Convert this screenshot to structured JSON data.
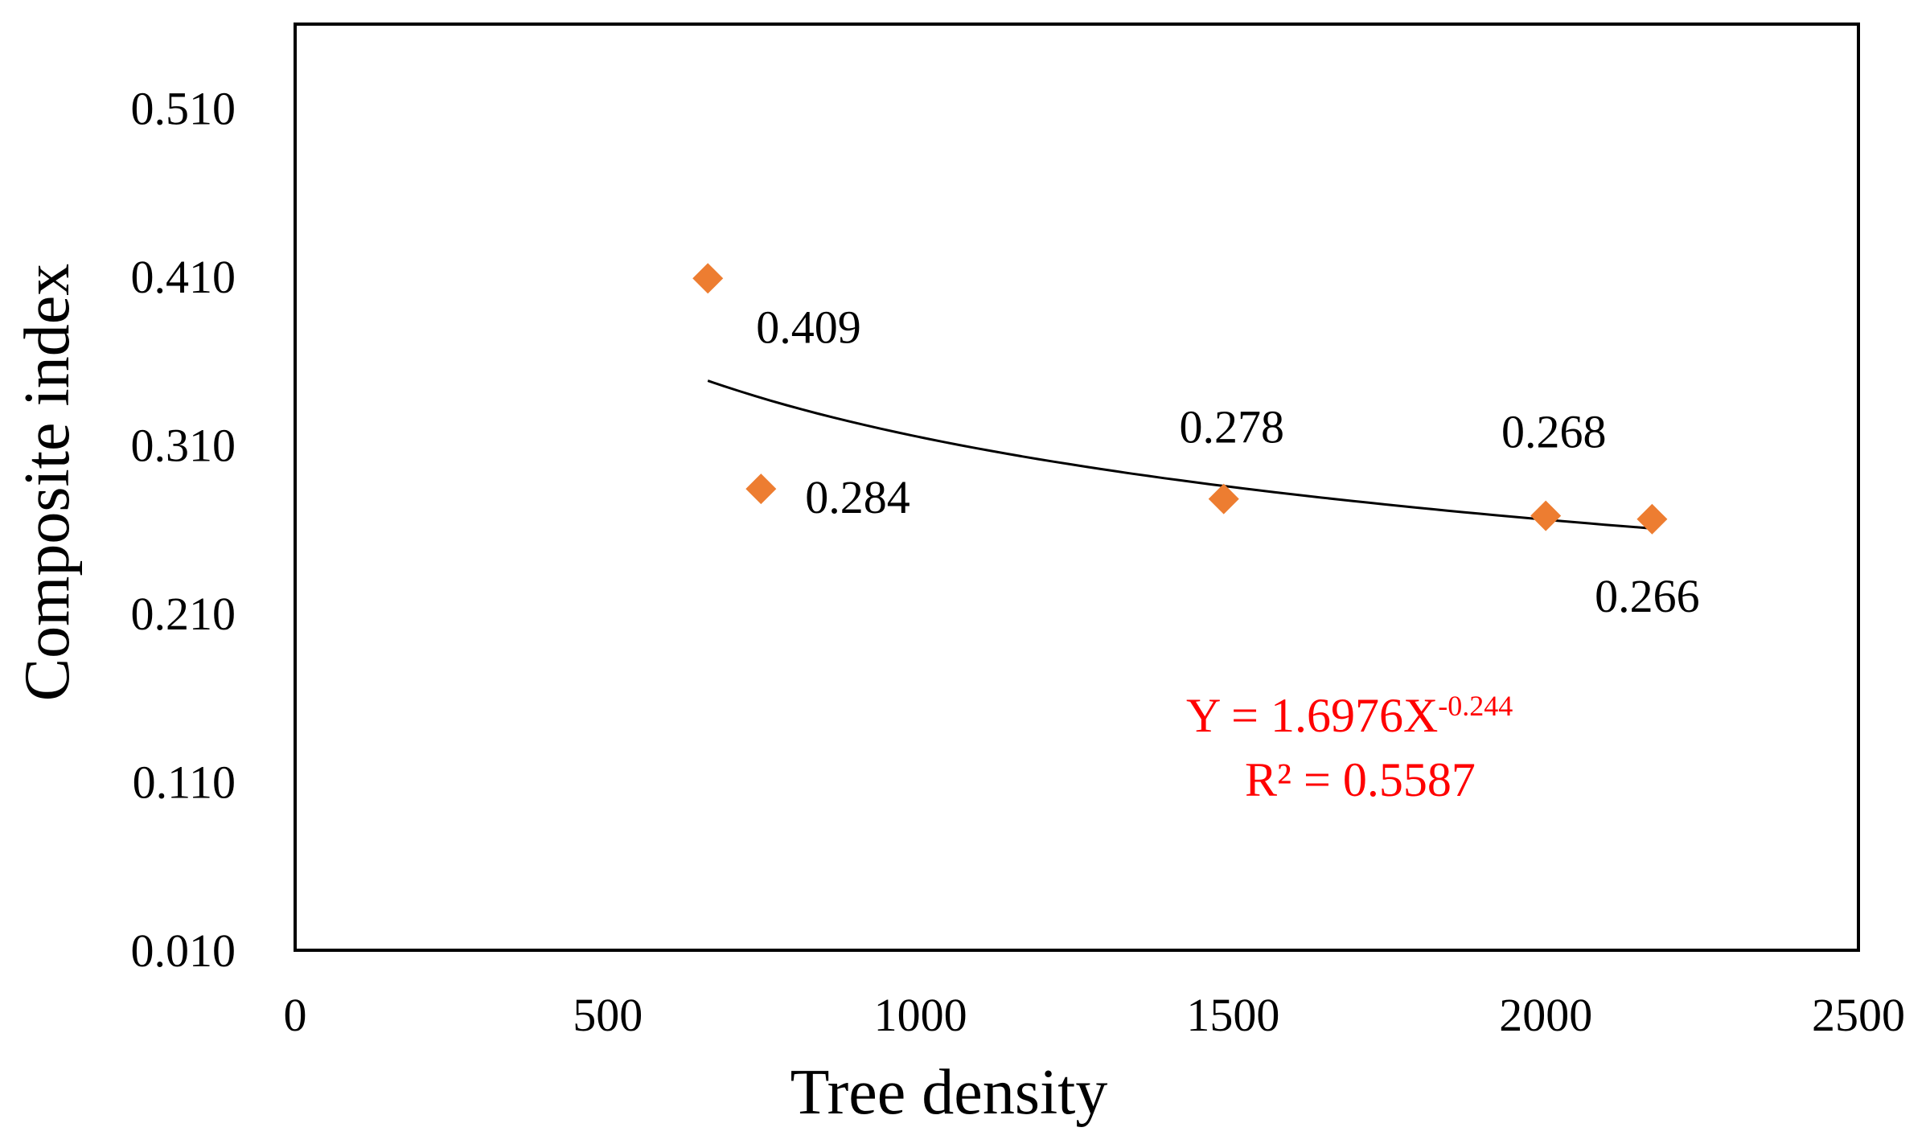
{
  "chart_data": {
    "type": "scatter",
    "title": "",
    "xlabel": "Tree density",
    "ylabel": "Composite index",
    "xlim": [
      0,
      2500
    ],
    "ylim": [
      0.01,
      0.56
    ],
    "x_ticks": [
      "0",
      "500",
      "1000",
      "1500",
      "2000",
      "2500"
    ],
    "y_ticks": [
      "0.010",
      "0.110",
      "0.210",
      "0.310",
      "0.410",
      "0.510"
    ],
    "grid": false,
    "series": [
      {
        "name": "Composite index",
        "color": "#ED7D31",
        "marker": "diamond",
        "points": [
          {
            "x": 660,
            "y": 0.409,
            "label": "0.409"
          },
          {
            "x": 745,
            "y": 0.284,
            "label": "0.284"
          },
          {
            "x": 1485,
            "y": 0.278,
            "label": "0.278"
          },
          {
            "x": 2000,
            "y": 0.268,
            "label": "0.268"
          },
          {
            "x": 2170,
            "y": 0.266,
            "label": "0.266"
          }
        ]
      }
    ],
    "trendline": {
      "type": "power",
      "coefficient": 1.6976,
      "exponent": -0.244,
      "x_range": [
        660,
        2170
      ],
      "color": "#000000",
      "equation_prefix": "Y = 1.6976X",
      "equation_exponent": "-0.244",
      "r_squared": "R² = 0.5587",
      "annotation_color": "#FF0000"
    }
  }
}
